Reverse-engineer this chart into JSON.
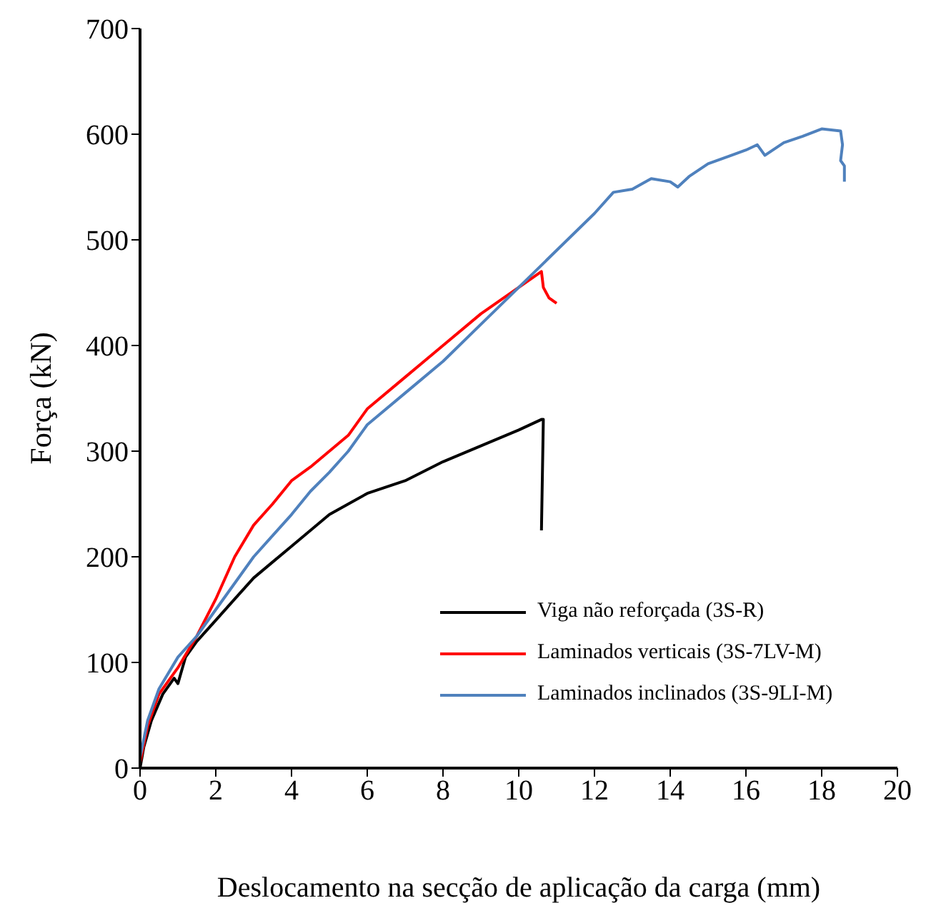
{
  "chart_data": {
    "type": "line",
    "xlabel": "Deslocamento na secção de aplicação da carga (mm)",
    "ylabel": "Força (kN)",
    "xlim": [
      0,
      20
    ],
    "xticks": [
      0,
      2,
      4,
      6,
      8,
      10,
      12,
      14,
      16,
      18,
      20
    ],
    "ylim": [
      0,
      700
    ],
    "yticks": [
      0,
      100,
      200,
      300,
      400,
      500,
      600,
      700
    ],
    "grid": false,
    "legend": "bottom right",
    "marker": "none",
    "line_style": "solid",
    "series": [
      {
        "name": "Viga não reforçada (3S-R)",
        "color": "#000000",
        "x": [
          0,
          0.1,
          0.3,
          0.6,
          0.9,
          1,
          1.2,
          1.5,
          2,
          2.5,
          3,
          3.5,
          4,
          4.5,
          5,
          5.5,
          6,
          7,
          8,
          9,
          10,
          10.6,
          10.65,
          10.6
        ],
        "values": [
          0,
          20,
          45,
          70,
          85,
          80,
          105,
          120,
          140,
          160,
          180,
          195,
          210,
          225,
          240,
          250,
          260,
          272,
          290,
          305,
          320,
          330,
          330,
          225
        ]
      },
      {
        "name": "Laminados verticais (3S-7LV-M)",
        "color": "#ff0000",
        "x": [
          0,
          0.2,
          0.5,
          1,
          1.5,
          2,
          2.5,
          3,
          3.5,
          4,
          4.5,
          5,
          5.5,
          6,
          7,
          8,
          9,
          10,
          10.6,
          10.65,
          10.8,
          11
        ],
        "values": [
          5,
          40,
          70,
          95,
          125,
          160,
          200,
          230,
          250,
          272,
          285,
          300,
          315,
          340,
          370,
          400,
          430,
          455,
          470,
          455,
          445,
          440
        ]
      },
      {
        "name": "Laminados inclinados (3S-9LI-M)",
        "color": "#4f81bd",
        "x": [
          0,
          0.2,
          0.5,
          1,
          1.5,
          2,
          2.5,
          3,
          3.5,
          4,
          4.5,
          5,
          5.5,
          6,
          7,
          8,
          9,
          10,
          11,
          12,
          12.5,
          13,
          13.5,
          14,
          14.2,
          14.5,
          15,
          16,
          16.3,
          16.5,
          17,
          17.5,
          18,
          18.5,
          18.55,
          18.5,
          18.6,
          18.6
        ],
        "values": [
          10,
          45,
          75,
          105,
          125,
          150,
          175,
          200,
          220,
          240,
          262,
          280,
          300,
          325,
          355,
          385,
          420,
          455,
          490,
          525,
          545,
          548,
          558,
          555,
          550,
          560,
          572,
          585,
          590,
          580,
          592,
          598,
          605,
          603,
          590,
          575,
          570,
          555
        ]
      }
    ]
  }
}
